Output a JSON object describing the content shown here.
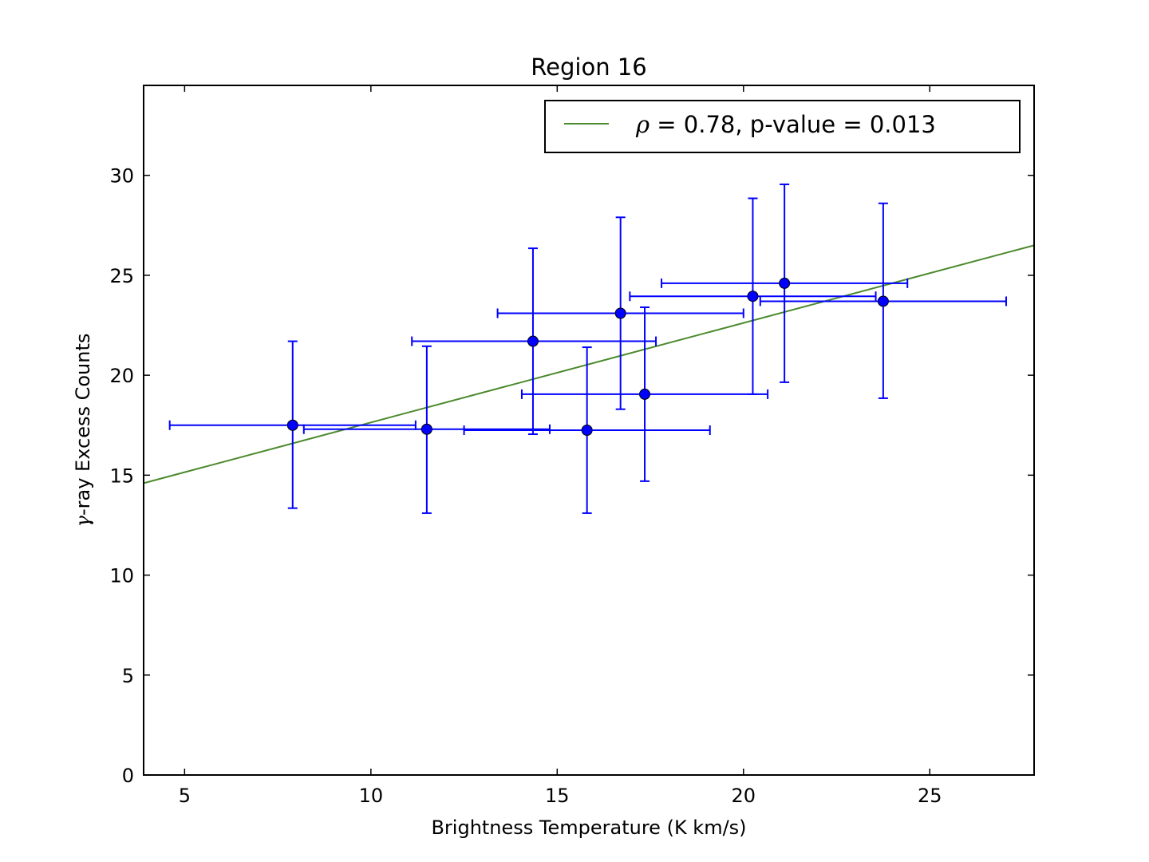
{
  "chart_data": {
    "type": "scatter",
    "title": "Region 16",
    "xlabel": "Brightness Temperature (K km/s)",
    "ylabel_symbol": "γ",
    "ylabel_text": "-ray Excess Counts",
    "xlim": [
      3.9,
      27.8
    ],
    "ylim": [
      0,
      34.5
    ],
    "xticks": [
      5,
      10,
      15,
      20,
      25
    ],
    "yticks": [
      0,
      5,
      10,
      15,
      20,
      25,
      30
    ],
    "grid": false,
    "legend_position": "top-right",
    "colors": {
      "points": "#0000ff",
      "fit": "#4c8a2e",
      "frame": "#000000"
    },
    "points": [
      {
        "x": 7.9,
        "y": 17.5,
        "xerr_lo": 4.6,
        "xerr_hi": 11.2,
        "yerr_lo": 13.35,
        "yerr_hi": 21.7
      },
      {
        "x": 11.5,
        "y": 17.3,
        "xerr_lo": 8.2,
        "xerr_hi": 14.8,
        "yerr_lo": 13.1,
        "yerr_hi": 21.45
      },
      {
        "x": 14.35,
        "y": 21.7,
        "xerr_lo": 11.1,
        "xerr_hi": 17.65,
        "yerr_lo": 17.05,
        "yerr_hi": 26.35
      },
      {
        "x": 15.8,
        "y": 17.25,
        "xerr_lo": 12.5,
        "xerr_hi": 19.1,
        "yerr_lo": 13.1,
        "yerr_hi": 21.4
      },
      {
        "x": 16.7,
        "y": 23.1,
        "xerr_lo": 13.4,
        "xerr_hi": 20.0,
        "yerr_lo": 18.3,
        "yerr_hi": 27.9
      },
      {
        "x": 17.35,
        "y": 19.05,
        "xerr_lo": 14.05,
        "xerr_hi": 20.65,
        "yerr_lo": 14.7,
        "yerr_hi": 23.4
      },
      {
        "x": 20.25,
        "y": 23.95,
        "xerr_lo": 16.95,
        "xerr_hi": 23.55,
        "yerr_lo": 19.05,
        "yerr_hi": 28.85
      },
      {
        "x": 21.1,
        "y": 24.6,
        "xerr_lo": 17.8,
        "xerr_hi": 24.4,
        "yerr_lo": 19.65,
        "yerr_hi": 29.55
      },
      {
        "x": 23.75,
        "y": 23.7,
        "xerr_lo": 20.45,
        "xerr_hi": 27.05,
        "yerr_lo": 18.85,
        "yerr_hi": 28.6
      }
    ],
    "fit_line": {
      "x": [
        3.9,
        27.8
      ],
      "y": [
        14.6,
        26.5
      ]
    },
    "legend": {
      "symbol": "ρ",
      "text": " = 0.78, p-value = 0.013"
    }
  }
}
